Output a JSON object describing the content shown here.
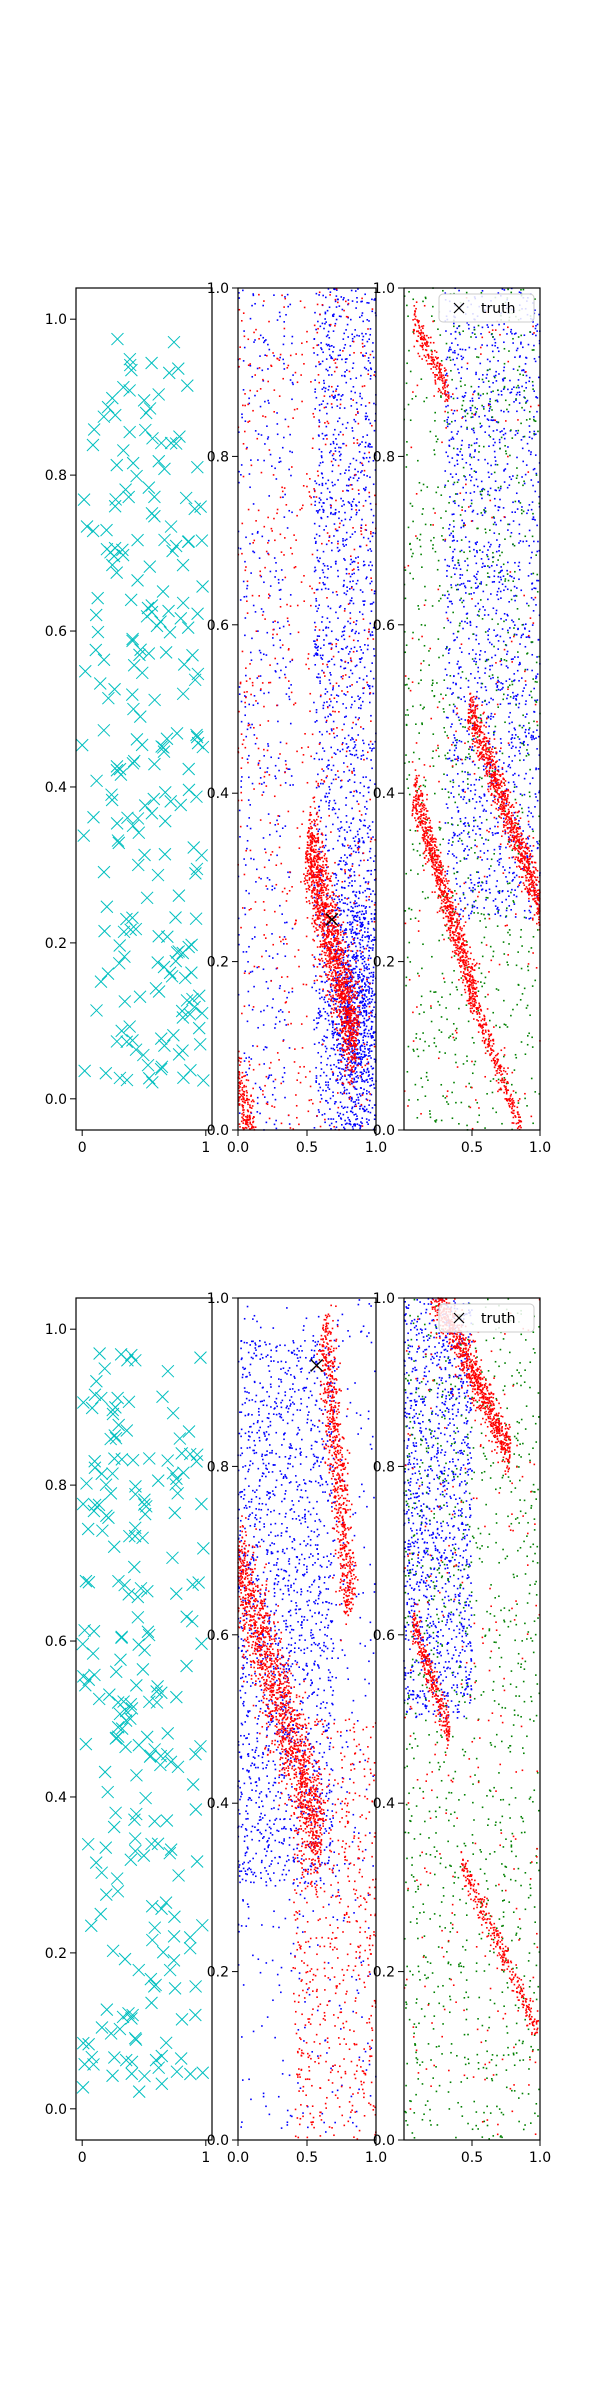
{
  "colors": {
    "samples": "#00bfbf",
    "blue": "#0000ff",
    "red": "#ff0000",
    "green": "#008000",
    "truth": "#000000"
  },
  "legend": {
    "label": "truth",
    "marker": "x-marker",
    "placement": "top-right"
  },
  "chart_data": [
    {
      "type": "scatter",
      "row": 0,
      "col": 0,
      "marker": "x",
      "color": "samples",
      "xlim": [
        -0.05,
        1.05
      ],
      "ylim": [
        -0.04,
        1.04
      ],
      "xticks": [
        "0",
        "1"
      ],
      "yticks": [
        "0.0",
        "0.2",
        "0.4",
        "0.6",
        "0.8",
        "1.0"
      ],
      "n_points": 230
    },
    {
      "type": "scatter",
      "row": 0,
      "col": 1,
      "xlim": [
        0,
        1
      ],
      "ylim": [
        0,
        1
      ],
      "xticks": [
        "0.0",
        "0.5",
        "1.0"
      ],
      "yticks": [
        "0.0",
        "0.2",
        "0.4",
        "0.6",
        "0.8",
        "1.0"
      ],
      "truth_point": [
        0.68,
        0.25
      ]
    },
    {
      "type": "scatter",
      "row": 0,
      "col": 2,
      "xlim": [
        0,
        1
      ],
      "ylim": [
        0,
        1
      ],
      "xticks": [
        "0.5",
        "1.0"
      ],
      "yticks": [
        "0.0",
        "0.2",
        "0.4",
        "0.6",
        "0.8",
        "1.0"
      ],
      "legend": "truth"
    },
    {
      "type": "scatter",
      "row": 1,
      "col": 0,
      "marker": "x",
      "color": "samples",
      "xlim": [
        -0.05,
        1.05
      ],
      "ylim": [
        -0.04,
        1.04
      ],
      "xticks": [
        "0",
        "1"
      ],
      "yticks": [
        "0.0",
        "0.2",
        "0.4",
        "0.6",
        "0.8",
        "1.0"
      ],
      "n_points": 230
    },
    {
      "type": "scatter",
      "row": 1,
      "col": 1,
      "xlim": [
        0,
        1
      ],
      "ylim": [
        0,
        1
      ],
      "xticks": [
        "0.0",
        "0.5",
        "1.0"
      ],
      "yticks": [
        "0.0",
        "0.2",
        "0.4",
        "0.6",
        "0.8",
        "1.0"
      ],
      "truth_point": [
        0.57,
        0.92
      ]
    },
    {
      "type": "scatter",
      "row": 1,
      "col": 2,
      "xlim": [
        0,
        1
      ],
      "ylim": [
        0,
        1
      ],
      "xticks": [
        "0.5",
        "1.0"
      ],
      "yticks": [
        "0.0",
        "0.2",
        "0.4",
        "0.6",
        "0.8",
        "1.0"
      ],
      "legend": "truth"
    }
  ]
}
